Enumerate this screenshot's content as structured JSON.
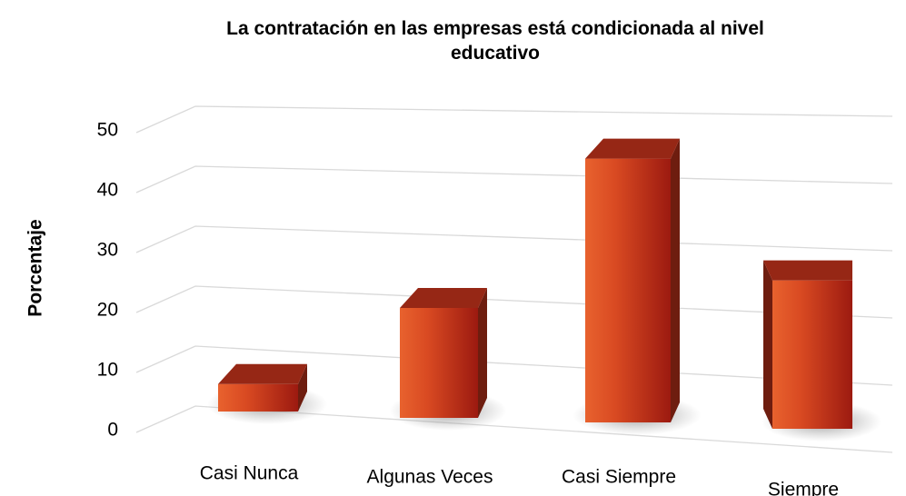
{
  "chart_data": {
    "type": "bar3d",
    "title": "La contratación en las empresas está condicionada al nivel educativo",
    "ylabel": "Porcentaje",
    "categories": [
      "Casi Nunca",
      "Algunas Veces",
      "Casi Siempre",
      "Siempre"
    ],
    "values": [
      5,
      20,
      48,
      27
    ],
    "color": "#c8341c",
    "ylim": [
      0,
      50
    ],
    "yticks": [
      0,
      10,
      20,
      30,
      40,
      50
    ],
    "grid": true
  }
}
